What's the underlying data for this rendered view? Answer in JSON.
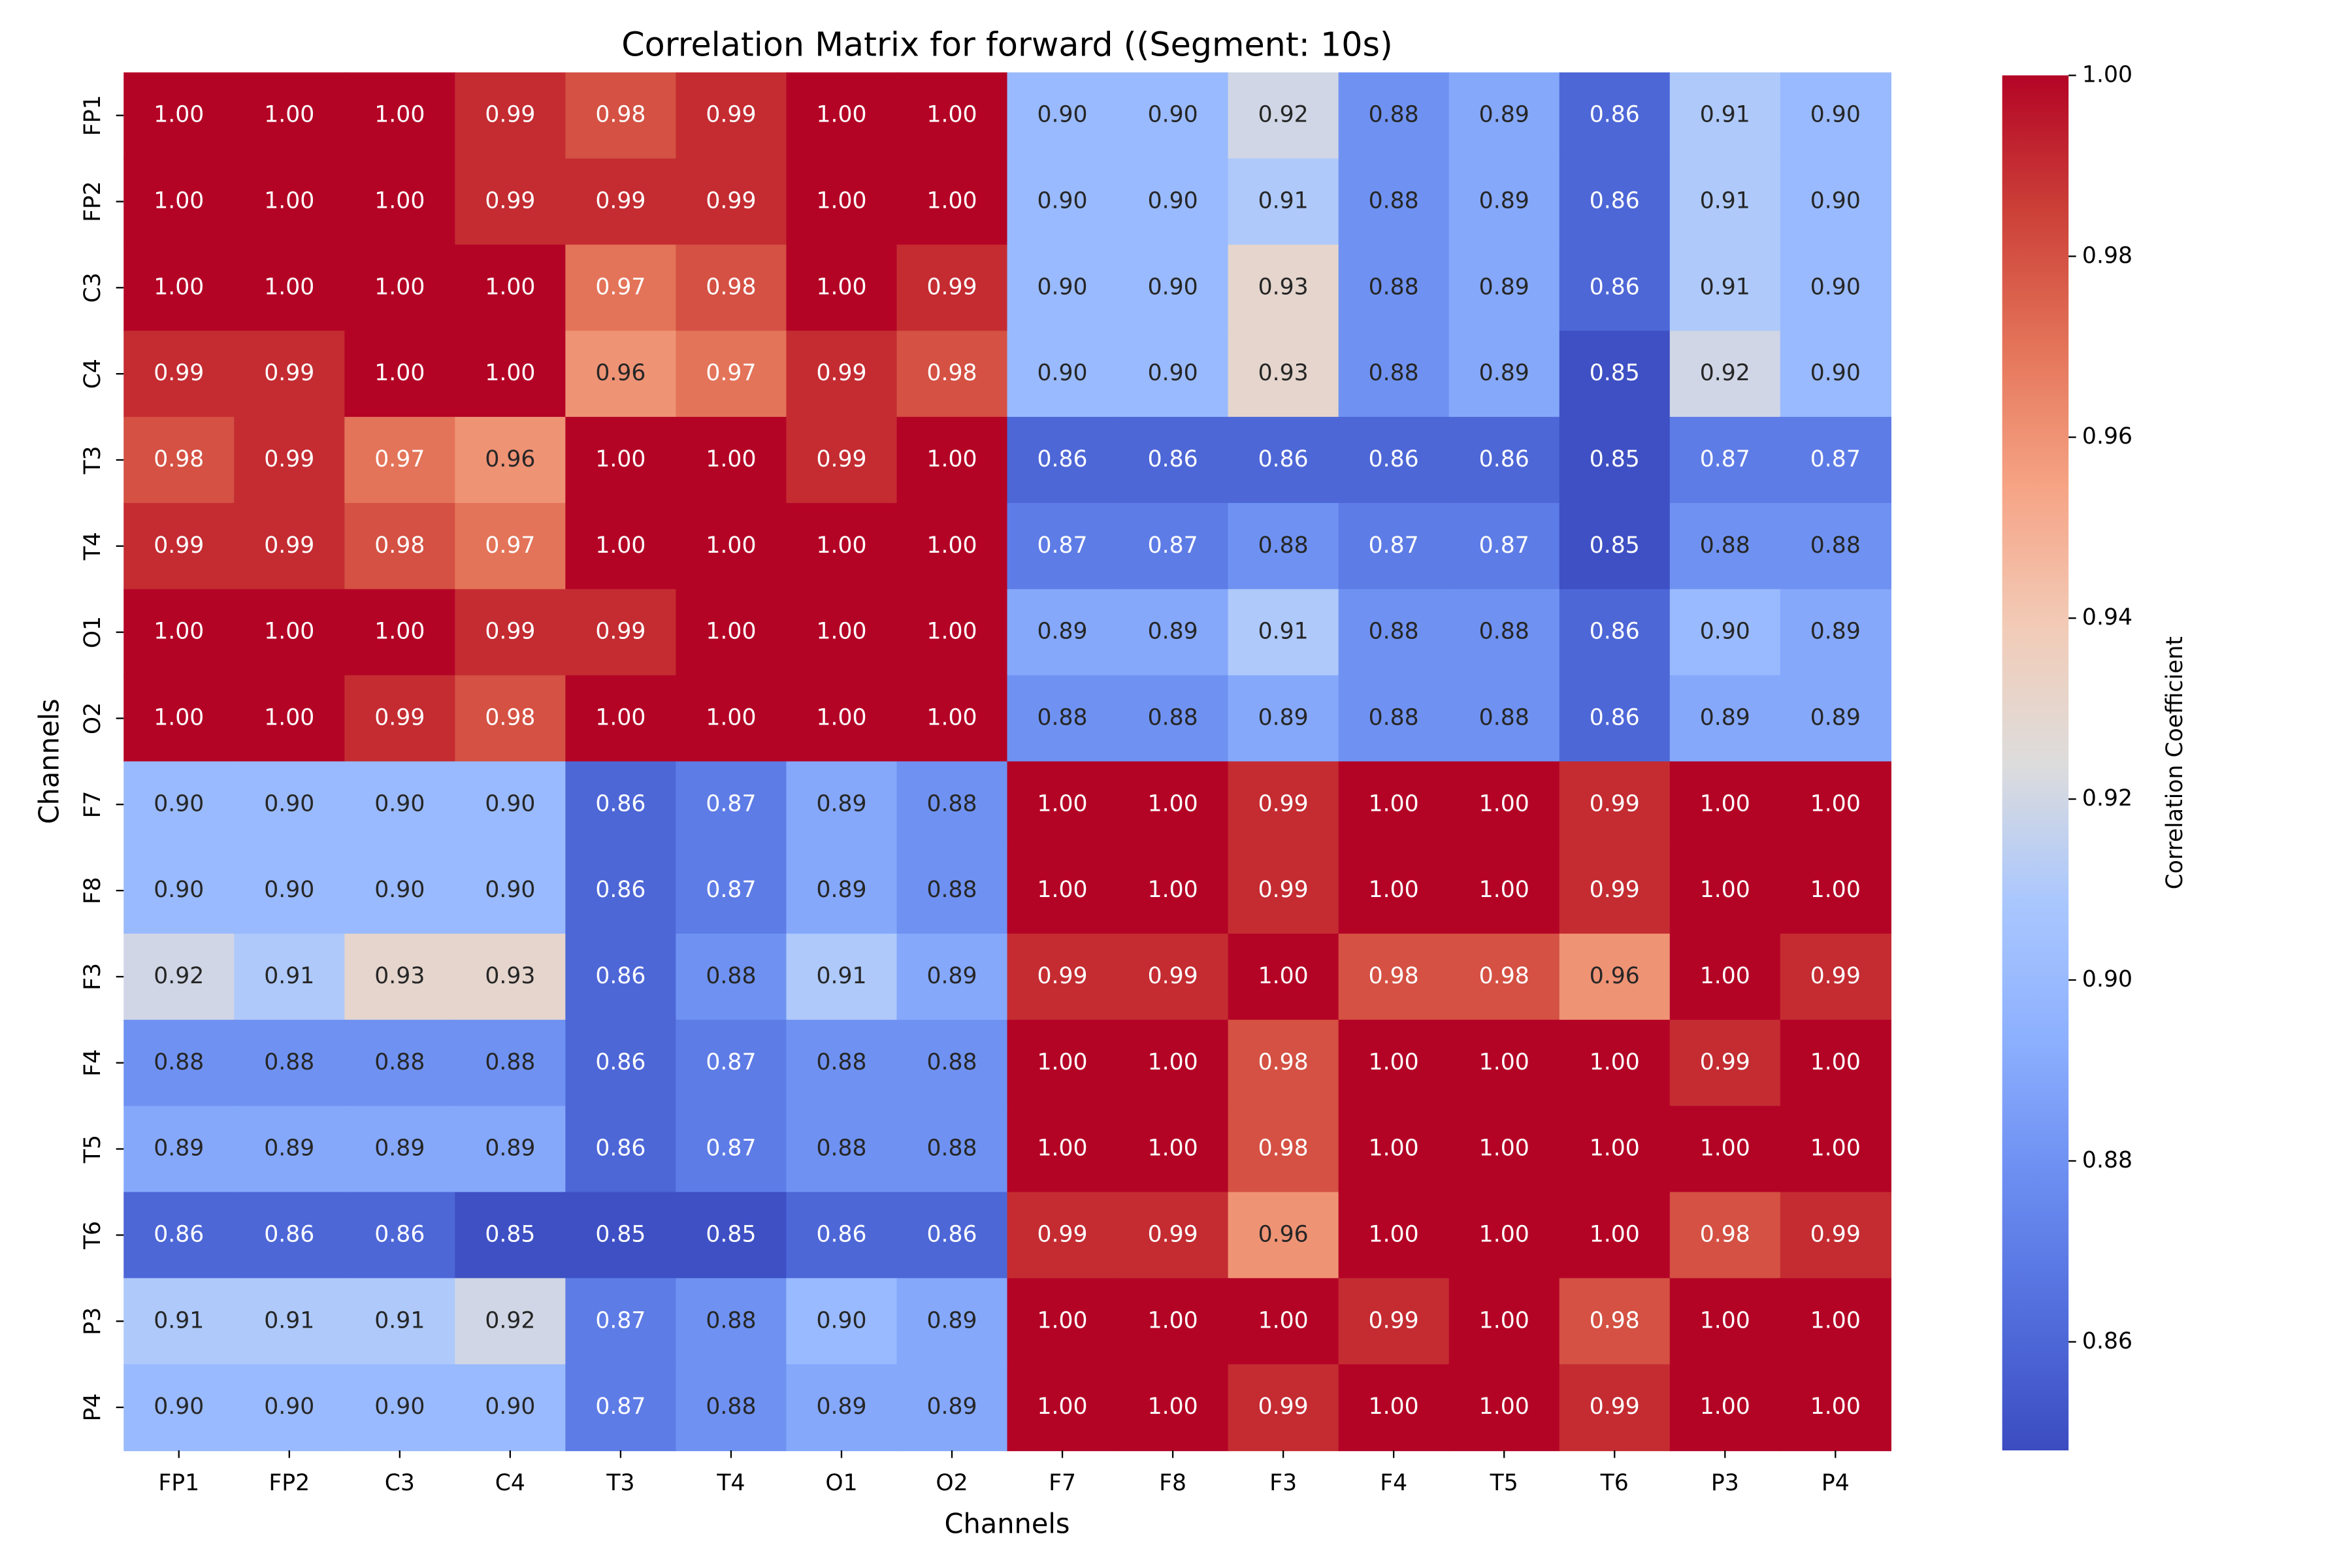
{
  "chart_data": {
    "type": "heatmap",
    "title": "Correlation Matrix for forward ((Segment: 10s)",
    "x_label": "Channels",
    "y_label": "Channels",
    "colorbar_label": "Correlation Coefficient",
    "colormap": "coolwarm",
    "clim": [
      0.848,
      1.0
    ],
    "cticks": [
      0.86,
      {
        "value": 0.88,
        "label": "0.88"
      },
      {
        "value": 0.9,
        "label": "0.90"
      },
      0.92,
      0.94,
      0.96,
      0.98,
      {
        "value": 1,
        "label": "1.00"
      }
    ],
    "x_categories": [
      "FP1",
      "FP2",
      "C3",
      "C4",
      "T3",
      "T4",
      "O1",
      "O2",
      "F7",
      "F8",
      "F3",
      "F4",
      "T5",
      "T6",
      "P3",
      "P4"
    ],
    "y_categories": [
      "FP1",
      "FP2",
      "C3",
      "C4",
      "T3",
      "T4",
      "O1",
      "O2",
      "F7",
      "F8",
      "F3",
      "F4",
      "T5",
      "T6",
      "P3",
      "P4"
    ],
    "values": [
      [
        1,
        1,
        1,
        0.99,
        0.98,
        0.99,
        1,
        1,
        0.9,
        0.9,
        0.92,
        0.88,
        0.89,
        0.86,
        0.91,
        0.9
      ],
      [
        1,
        1,
        1,
        0.99,
        0.99,
        0.99,
        1,
        1,
        0.9,
        0.9,
        0.91,
        0.88,
        0.89,
        0.86,
        0.91,
        0.9
      ],
      [
        1,
        1,
        1,
        1,
        0.97,
        0.98,
        1,
        0.99,
        0.9,
        0.9,
        0.93,
        0.88,
        0.89,
        0.86,
        0.91,
        0.9
      ],
      [
        0.99,
        0.99,
        1,
        1,
        0.96,
        0.97,
        0.99,
        0.98,
        0.9,
        0.9,
        0.93,
        0.88,
        0.89,
        0.85,
        0.92,
        0.9
      ],
      [
        0.98,
        0.99,
        0.97,
        0.96,
        1,
        1,
        0.99,
        1,
        0.86,
        0.86,
        0.86,
        0.86,
        0.86,
        0.85,
        0.87,
        0.87
      ],
      [
        0.99,
        0.99,
        0.98,
        0.97,
        1,
        1,
        1,
        1,
        0.87,
        0.87,
        0.88,
        0.87,
        0.87,
        0.85,
        0.88,
        0.88
      ],
      [
        1,
        1,
        1,
        0.99,
        0.99,
        1,
        1,
        1,
        0.89,
        0.89,
        0.91,
        0.88,
        0.88,
        0.86,
        0.9,
        0.89
      ],
      [
        1,
        1,
        0.99,
        0.98,
        1,
        1,
        1,
        1,
        0.88,
        0.88,
        0.89,
        0.88,
        0.88,
        0.86,
        0.89,
        0.89
      ],
      [
        0.9,
        0.9,
        0.9,
        0.9,
        0.86,
        0.87,
        0.89,
        0.88,
        1,
        1,
        0.99,
        1,
        1,
        0.99,
        1,
        1
      ],
      [
        0.9,
        0.9,
        0.9,
        0.9,
        0.86,
        0.87,
        0.89,
        0.88,
        1,
        1,
        0.99,
        1,
        1,
        0.99,
        1,
        1
      ],
      [
        0.92,
        0.91,
        0.93,
        0.93,
        0.86,
        0.88,
        0.91,
        0.89,
        0.99,
        0.99,
        1,
        0.98,
        0.98,
        0.96,
        1,
        0.99
      ],
      [
        0.88,
        0.88,
        0.88,
        0.88,
        0.86,
        0.87,
        0.88,
        0.88,
        1,
        1,
        0.98,
        1,
        1,
        1,
        0.99,
        1
      ],
      [
        0.89,
        0.89,
        0.89,
        0.89,
        0.86,
        0.87,
        0.88,
        0.88,
        1,
        1,
        0.98,
        1,
        1,
        1,
        1,
        1
      ],
      [
        0.86,
        0.86,
        0.86,
        0.85,
        0.85,
        0.85,
        0.86,
        0.86,
        0.99,
        0.99,
        0.96,
        1,
        1,
        1,
        0.98,
        0.99
      ],
      [
        0.91,
        0.91,
        0.91,
        0.92,
        0.87,
        0.88,
        0.9,
        0.89,
        1,
        1,
        1,
        0.99,
        1,
        0.98,
        1,
        1
      ],
      [
        0.9,
        0.9,
        0.9,
        0.9,
        0.87,
        0.88,
        0.89,
        0.89,
        1,
        1,
        0.99,
        1,
        1,
        0.99,
        1,
        1
      ]
    ],
    "value_labels": [
      [
        "1.00",
        "1.00",
        "1.00",
        "0.99",
        "0.98",
        "0.99",
        "1.00",
        "1.00",
        "0.90",
        "0.90",
        "0.92",
        "0.88",
        "0.89",
        "0.86",
        "0.91",
        "0.90"
      ],
      [
        "1.00",
        "1.00",
        "1.00",
        "0.99",
        "0.99",
        "0.99",
        "1.00",
        "1.00",
        "0.90",
        "0.90",
        "0.91",
        "0.88",
        "0.89",
        "0.86",
        "0.91",
        "0.90"
      ],
      [
        "1.00",
        "1.00",
        "1.00",
        "1.00",
        "0.97",
        "0.98",
        "1.00",
        "0.99",
        "0.90",
        "0.90",
        "0.93",
        "0.88",
        "0.89",
        "0.86",
        "0.91",
        "0.90"
      ],
      [
        "0.99",
        "0.99",
        "1.00",
        "1.00",
        "0.96",
        "0.97",
        "0.99",
        "0.98",
        "0.90",
        "0.90",
        "0.93",
        "0.88",
        "0.89",
        "0.85",
        "0.92",
        "0.90"
      ],
      [
        "0.98",
        "0.99",
        "0.97",
        "0.96",
        "1.00",
        "1.00",
        "0.99",
        "1.00",
        "0.86",
        "0.86",
        "0.86",
        "0.86",
        "0.86",
        "0.85",
        "0.87",
        "0.87"
      ],
      [
        "0.99",
        "0.99",
        "0.98",
        "0.97",
        "1.00",
        "1.00",
        "1.00",
        "1.00",
        "0.87",
        "0.87",
        "0.88",
        "0.87",
        "0.87",
        "0.85",
        "0.88",
        "0.88"
      ],
      [
        "1.00",
        "1.00",
        "1.00",
        "0.99",
        "0.99",
        "1.00",
        "1.00",
        "1.00",
        "0.89",
        "0.89",
        "0.91",
        "0.88",
        "0.88",
        "0.86",
        "0.90",
        "0.89"
      ],
      [
        "1.00",
        "1.00",
        "0.99",
        "0.98",
        "1.00",
        "1.00",
        "1.00",
        "1.00",
        "0.88",
        "0.88",
        "0.89",
        "0.88",
        "0.88",
        "0.86",
        "0.89",
        "0.89"
      ],
      [
        "0.90",
        "0.90",
        "0.90",
        "0.90",
        "0.86",
        "0.87",
        "0.89",
        "0.88",
        "1.00",
        "1.00",
        "0.99",
        "1.00",
        "1.00",
        "0.99",
        "1.00",
        "1.00"
      ],
      [
        "0.90",
        "0.90",
        "0.90",
        "0.90",
        "0.86",
        "0.87",
        "0.89",
        "0.88",
        "1.00",
        "1.00",
        "0.99",
        "1.00",
        "1.00",
        "0.99",
        "1.00",
        "1.00"
      ],
      [
        "0.92",
        "0.91",
        "0.93",
        "0.93",
        "0.86",
        "0.88",
        "0.91",
        "0.89",
        "0.99",
        "0.99",
        "1.00",
        "0.98",
        "0.98",
        "0.96",
        "1.00",
        "0.99"
      ],
      [
        "0.88",
        "0.88",
        "0.88",
        "0.88",
        "0.86",
        "0.87",
        "0.88",
        "0.88",
        "1.00",
        "1.00",
        "0.98",
        "1.00",
        "1.00",
        "1.00",
        "0.99",
        "1.00"
      ],
      [
        "0.89",
        "0.89",
        "0.89",
        "0.89",
        "0.86",
        "0.87",
        "0.88",
        "0.88",
        "1.00",
        "1.00",
        "0.98",
        "1.00",
        "1.00",
        "1.00",
        "1.00",
        "1.00"
      ],
      [
        "0.86",
        "0.86",
        "0.86",
        "0.85",
        "0.85",
        "0.85",
        "0.86",
        "0.86",
        "0.99",
        "0.99",
        "0.96",
        "1.00",
        "1.00",
        "1.00",
        "0.98",
        "0.99"
      ],
      [
        "0.91",
        "0.91",
        "0.91",
        "0.92",
        "0.87",
        "0.88",
        "0.90",
        "0.89",
        "1.00",
        "1.00",
        "1.00",
        "0.99",
        "1.00",
        "0.98",
        "1.00",
        "1.00"
      ],
      [
        "0.90",
        "0.90",
        "0.90",
        "0.90",
        "0.87",
        "0.88",
        "0.89",
        "0.89",
        "1.00",
        "1.00",
        "0.99",
        "1.00",
        "1.00",
        "0.99",
        "1.00",
        "1.00"
      ]
    ]
  }
}
